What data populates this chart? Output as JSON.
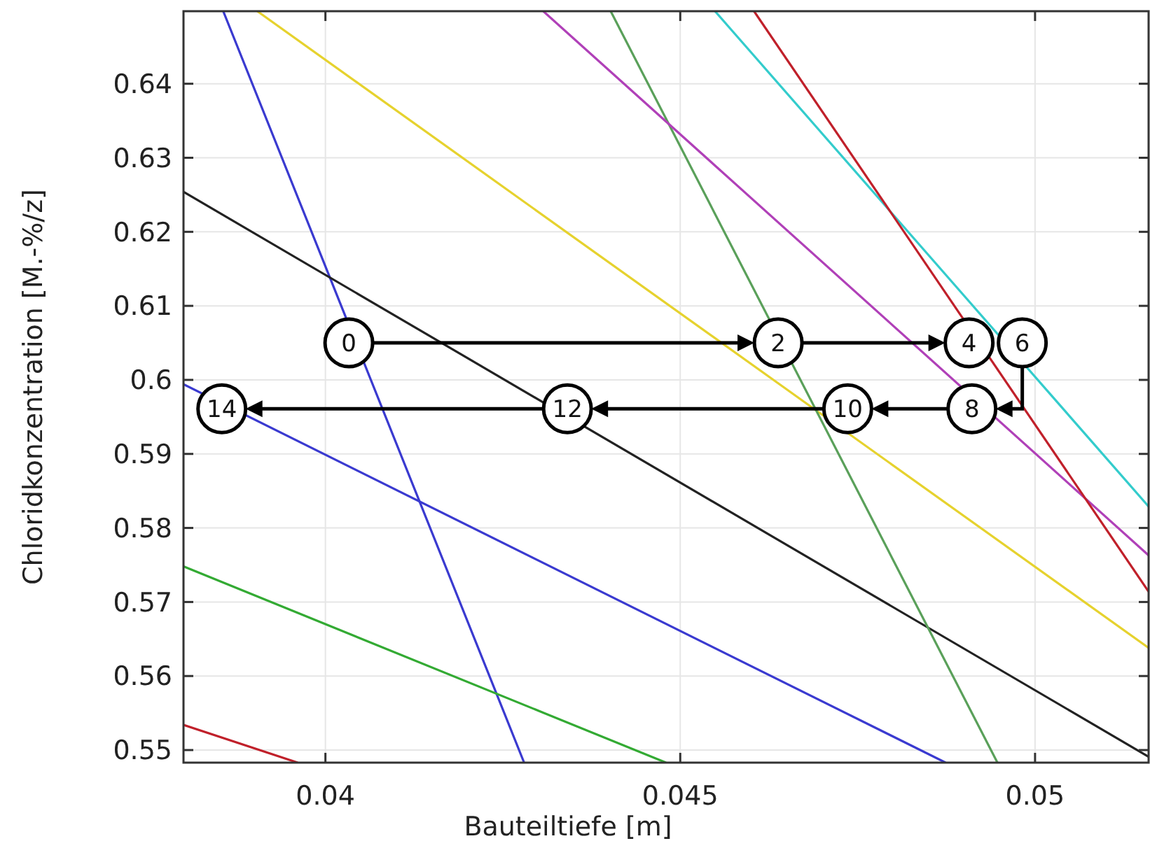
{
  "chart_data": {
    "type": "line",
    "xlabel": "Bauteiltiefe [m]",
    "ylabel": "Chloridkonzentration [M.-%/z]",
    "xlim": [
      0.038,
      0.0516
    ],
    "ylim": [
      0.5483,
      0.6498
    ],
    "xticks": [
      0.04,
      0.045,
      0.05
    ],
    "yticks": [
      0.55,
      0.56,
      0.57,
      0.58,
      0.59,
      0.6,
      0.61,
      0.62,
      0.63,
      0.64
    ],
    "grid": true,
    "marker": "none",
    "line_style": "solid",
    "series": [
      {
        "color": "#3a3ad0",
        "x": [
          0.03856,
          0.0428
        ],
        "values": [
          0.6498,
          0.5483
        ]
      },
      {
        "color": "#e6d22e",
        "x": [
          0.03904,
          0.0516
        ],
        "values": [
          0.6498,
          0.5638
        ]
      },
      {
        "color": "#222222",
        "x": [
          0.038,
          0.0516
        ],
        "values": [
          0.6254,
          0.5491
        ]
      },
      {
        "color": "#3a3ad0",
        "x": [
          0.038,
          0.04874
        ],
        "values": [
          0.5994,
          0.5483
        ]
      },
      {
        "color": "#33aa33",
        "x": [
          0.038,
          0.0448
        ],
        "values": [
          0.5748,
          0.5483
        ]
      },
      {
        "color": "#c0202a",
        "x": [
          0.038,
          0.03961
        ],
        "values": [
          0.5534,
          0.5483
        ]
      },
      {
        "color": "#5aa05a",
        "x": [
          0.04402,
          0.04947
        ],
        "values": [
          0.6498,
          0.5483
        ]
      },
      {
        "color": "#b040b8",
        "x": [
          0.04307,
          0.0516
        ],
        "values": [
          0.6498,
          0.5763
        ]
      },
      {
        "color": "#33cccc",
        "x": [
          0.04549,
          0.0516
        ],
        "values": [
          0.6498,
          0.5829
        ]
      },
      {
        "color": "#c0202a",
        "x": [
          0.04604,
          0.0516
        ],
        "values": [
          0.6498,
          0.5714
        ]
      }
    ],
    "annotations": [
      {
        "text": "0",
        "x": 0.04033,
        "y": 0.605
      },
      {
        "text": "2",
        "x": 0.04638,
        "y": 0.605
      },
      {
        "text": "4",
        "x": 0.04907,
        "y": 0.605
      },
      {
        "text": "6",
        "x": 0.04982,
        "y": 0.605
      },
      {
        "text": "8",
        "x": 0.04911,
        "y": 0.5961
      },
      {
        "text": "10",
        "x": 0.04736,
        "y": 0.5961
      },
      {
        "text": "12",
        "x": 0.04341,
        "y": 0.5961
      },
      {
        "text": "14",
        "x": 0.03854,
        "y": 0.5961
      }
    ]
  }
}
